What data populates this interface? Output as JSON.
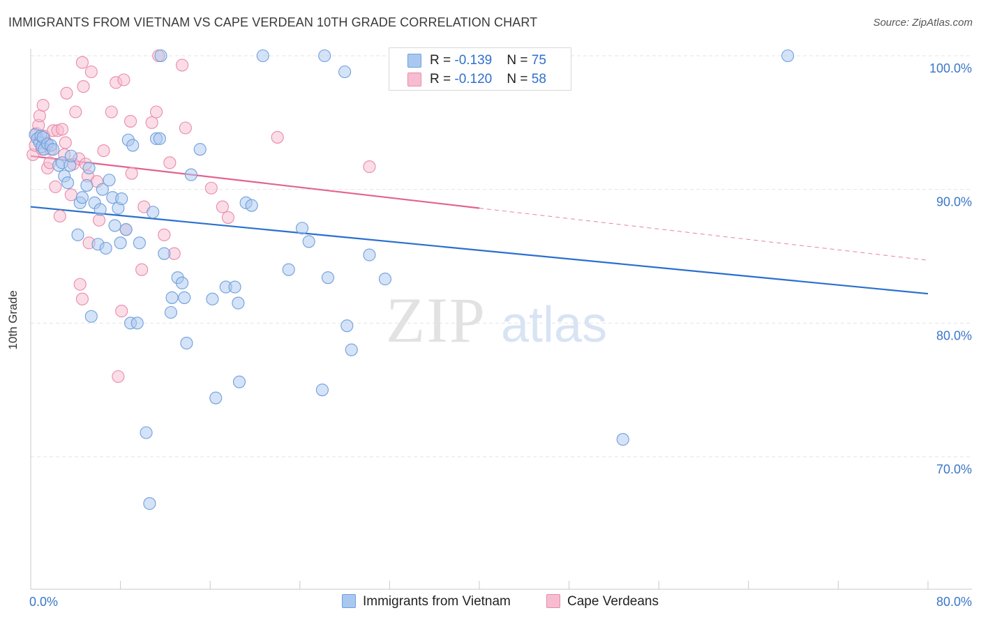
{
  "title": "IMMIGRANTS FROM VIETNAM VS CAPE VERDEAN 10TH GRADE CORRELATION CHART",
  "source": "Source: ZipAtlas.com",
  "watermark": {
    "zip": "ZIP",
    "atlas": "atlas"
  },
  "legend": {
    "rows": [
      {
        "r_label": "R = ",
        "r_value": "-0.139",
        "n_label": "N = ",
        "n_value": "75"
      },
      {
        "r_label": "R = ",
        "r_value": "-0.120",
        "n_label": "N = ",
        "n_value": "58"
      }
    ]
  },
  "colors": {
    "blue_fill": "#a9c8f0",
    "blue_stroke": "#6f9fdc",
    "blue_line": "#2a6fce",
    "pink_fill": "#f7bcd0",
    "pink_stroke": "#e98aab",
    "pink_line": "#e2628f",
    "tick_label": "#3a76c9",
    "grid": "#e3e3e3"
  },
  "chart_data": {
    "type": "scatter",
    "title": "IMMIGRANTS FROM VIETNAM VS CAPE VERDEAN 10TH GRADE CORRELATION CHART",
    "xlabel": "",
    "ylabel": "10th Grade",
    "xlim": [
      0,
      80
    ],
    "ylim": [
      60,
      101.5
    ],
    "x_tick_labels": [
      "0.0%",
      "80.0%"
    ],
    "y_ticks": [
      70,
      80,
      90,
      100
    ],
    "y_tick_labels": [
      "70.0%",
      "80.0%",
      "90.0%",
      "100.0%"
    ],
    "grid": "horizontal dashed",
    "legend_position": "bottom",
    "series": [
      {
        "name": "Immigrants from Vietnam",
        "color": "#a9c8f0",
        "r": -0.139,
        "n": 75,
        "trend": {
          "x": [
            0,
            80
          ],
          "y": [
            88.7,
            82.2
          ],
          "dashed_from": null
        },
        "points": [
          [
            0.4,
            94.1
          ],
          [
            0.6,
            93.8
          ],
          [
            0.8,
            93.5
          ],
          [
            0.9,
            94.0
          ],
          [
            1.0,
            93.2
          ],
          [
            1.1,
            93.9
          ],
          [
            1.2,
            93.0
          ],
          [
            1.5,
            93.4
          ],
          [
            1.8,
            93.3
          ],
          [
            2.0,
            93.0
          ],
          [
            2.5,
            91.8
          ],
          [
            2.8,
            92.0
          ],
          [
            3.0,
            91.0
          ],
          [
            3.3,
            90.5
          ],
          [
            3.5,
            91.8
          ],
          [
            3.6,
            92.5
          ],
          [
            4.2,
            86.6
          ],
          [
            4.4,
            89.0
          ],
          [
            4.6,
            89.4
          ],
          [
            5.0,
            90.3
          ],
          [
            5.2,
            91.6
          ],
          [
            5.4,
            80.5
          ],
          [
            5.7,
            89.0
          ],
          [
            6.0,
            85.9
          ],
          [
            6.2,
            88.5
          ],
          [
            6.4,
            90.0
          ],
          [
            6.7,
            85.6
          ],
          [
            7.0,
            90.7
          ],
          [
            7.3,
            89.4
          ],
          [
            7.5,
            87.3
          ],
          [
            7.8,
            88.6
          ],
          [
            8.0,
            86.0
          ],
          [
            8.1,
            89.3
          ],
          [
            8.5,
            87.0
          ],
          [
            8.7,
            93.7
          ],
          [
            8.9,
            80.0
          ],
          [
            9.1,
            93.3
          ],
          [
            9.5,
            80.0
          ],
          [
            9.7,
            86.0
          ],
          [
            10.3,
            71.8
          ],
          [
            10.6,
            66.5
          ],
          [
            10.9,
            88.3
          ],
          [
            11.2,
            93.8
          ],
          [
            11.5,
            93.8
          ],
          [
            11.6,
            100.0
          ],
          [
            11.9,
            85.2
          ],
          [
            12.6,
            81.9
          ],
          [
            12.5,
            80.8
          ],
          [
            13.1,
            83.4
          ],
          [
            13.5,
            83.0
          ],
          [
            13.7,
            81.9
          ],
          [
            13.9,
            78.5
          ],
          [
            14.3,
            91.1
          ],
          [
            15.1,
            93.0
          ],
          [
            16.2,
            81.8
          ],
          [
            16.5,
            74.4
          ],
          [
            17.4,
            82.7
          ],
          [
            18.2,
            82.7
          ],
          [
            18.5,
            81.5
          ],
          [
            18.6,
            75.6
          ],
          [
            19.2,
            89.0
          ],
          [
            19.7,
            88.8
          ],
          [
            20.7,
            100.0
          ],
          [
            23.0,
            84.0
          ],
          [
            24.2,
            87.1
          ],
          [
            24.8,
            86.1
          ],
          [
            26.0,
            75.0
          ],
          [
            26.2,
            100.0
          ],
          [
            26.5,
            83.4
          ],
          [
            28.0,
            98.8
          ],
          [
            28.2,
            79.8
          ],
          [
            28.6,
            78.0
          ],
          [
            30.2,
            85.1
          ],
          [
            31.6,
            83.3
          ],
          [
            52.8,
            71.3
          ],
          [
            67.5,
            100.0
          ]
        ]
      },
      {
        "name": "Cape Verdeans",
        "color": "#f7bcd0",
        "r": -0.12,
        "n": 58,
        "trend": {
          "x": [
            0,
            80
          ],
          "y": [
            92.5,
            84.7
          ],
          "dashed_from": 40
        },
        "points": [
          [
            0.2,
            92.6
          ],
          [
            0.4,
            93.3
          ],
          [
            0.5,
            94.2
          ],
          [
            0.7,
            94.8
          ],
          [
            0.8,
            95.5
          ],
          [
            1.0,
            93.0
          ],
          [
            1.1,
            96.3
          ],
          [
            1.2,
            94.0
          ],
          [
            1.4,
            93.5
          ],
          [
            1.5,
            91.6
          ],
          [
            1.7,
            92.0
          ],
          [
            1.8,
            93.0
          ],
          [
            2.0,
            94.4
          ],
          [
            2.2,
            90.2
          ],
          [
            2.4,
            94.4
          ],
          [
            2.6,
            88.0
          ],
          [
            2.8,
            94.5
          ],
          [
            3.0,
            92.6
          ],
          [
            3.1,
            93.5
          ],
          [
            3.2,
            97.2
          ],
          [
            3.6,
            89.6
          ],
          [
            3.8,
            91.9
          ],
          [
            4.0,
            95.8
          ],
          [
            4.3,
            92.3
          ],
          [
            4.4,
            82.9
          ],
          [
            4.6,
            99.5
          ],
          [
            4.7,
            97.7
          ],
          [
            4.9,
            91.9
          ],
          [
            5.1,
            91.0
          ],
          [
            5.2,
            86.0
          ],
          [
            5.4,
            98.8
          ],
          [
            5.9,
            90.6
          ],
          [
            6.1,
            87.7
          ],
          [
            6.5,
            92.9
          ],
          [
            7.2,
            95.8
          ],
          [
            7.6,
            98.0
          ],
          [
            7.8,
            76.0
          ],
          [
            8.1,
            80.9
          ],
          [
            8.3,
            98.2
          ],
          [
            8.5,
            87.0
          ],
          [
            8.9,
            95.1
          ],
          [
            9.0,
            91.2
          ],
          [
            9.9,
            84.0
          ],
          [
            10.1,
            88.7
          ],
          [
            10.8,
            95.0
          ],
          [
            11.2,
            95.8
          ],
          [
            11.4,
            100.0
          ],
          [
            11.9,
            86.6
          ],
          [
            12.4,
            92.0
          ],
          [
            12.8,
            85.2
          ],
          [
            13.5,
            99.3
          ],
          [
            13.8,
            94.6
          ],
          [
            16.1,
            90.1
          ],
          [
            17.1,
            88.7
          ],
          [
            17.6,
            87.9
          ],
          [
            22.0,
            93.9
          ],
          [
            30.2,
            91.7
          ],
          [
            4.6,
            81.8
          ]
        ]
      }
    ]
  },
  "bottom_legend": [
    {
      "label": "Immigrants from Vietnam"
    },
    {
      "label": "Cape Verdeans"
    }
  ]
}
